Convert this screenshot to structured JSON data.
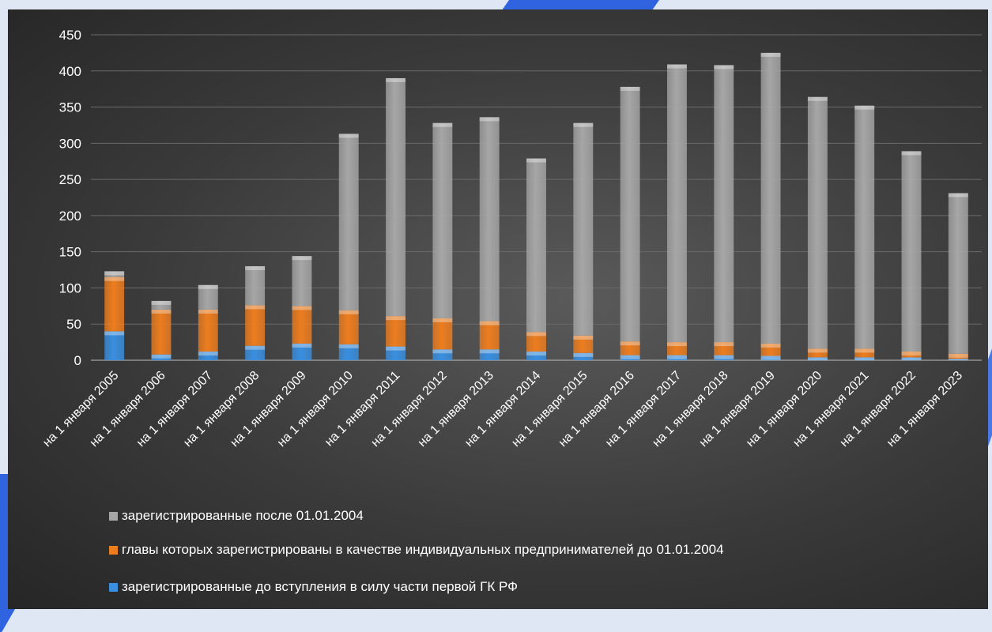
{
  "chart_data": {
    "type": "bar",
    "stacked": true,
    "title": "",
    "xlabel": "",
    "ylabel": "",
    "ylim": [
      0,
      450
    ],
    "yticks": [
      0,
      50,
      100,
      150,
      200,
      250,
      300,
      350,
      400,
      450
    ],
    "grid": true,
    "legend_position": "bottom",
    "categories": [
      "на 1 января 2005",
      "на 1 января 2006",
      "на 1 января 2007",
      "на 1 января 2008",
      "на 1 января 2009",
      "на 1 января 2010",
      "на 1 января 2011",
      "на 1 января 2012",
      "на 1 января 2013",
      "на 1 января 2014",
      "на 1 января 2015",
      "на 1 января 2016",
      "на 1 января 2017",
      "на 1 января 2018",
      "на 1 января 2019",
      "на 1 января 2020",
      "на 1 января 2021",
      "на 1 января 2022",
      "на 1 января 2023"
    ],
    "series": [
      {
        "name": "зарегистрированные до вступления в силу части первой ГК РФ",
        "color": "#3a8fe0",
        "values": [
          40,
          8,
          12,
          20,
          23,
          22,
          19,
          15,
          15,
          12,
          10,
          7,
          7,
          7,
          6,
          4,
          4,
          4,
          2
        ]
      },
      {
        "name": "главы которых зарегистрированы в качестве индивидуальных предпринимателей до 01.01.2004",
        "color": "#ed7d1f",
        "values": [
          75,
          62,
          58,
          56,
          52,
          47,
          42,
          43,
          39,
          27,
          24,
          19,
          18,
          18,
          17,
          12,
          12,
          8,
          7
        ]
      },
      {
        "name": "зарегистрированные после 01.01.2004",
        "color": "#a6a6a6",
        "values": [
          8,
          12,
          34,
          54,
          69,
          244,
          329,
          270,
          282,
          240,
          294,
          352,
          384,
          383,
          402,
          348,
          336,
          277,
          222
        ]
      }
    ]
  },
  "legend": [
    {
      "label": "зарегистрированные после 01.01.2004",
      "color": "#a6a6a6"
    },
    {
      "label": "главы которых зарегистрированы в качестве индивидуальных предпринимателей до 01.01.2004",
      "color": "#ed7d1f"
    },
    {
      "label": "зарегистрированные до вступления в силу части первой ГК РФ",
      "color": "#3a8fe0"
    }
  ]
}
